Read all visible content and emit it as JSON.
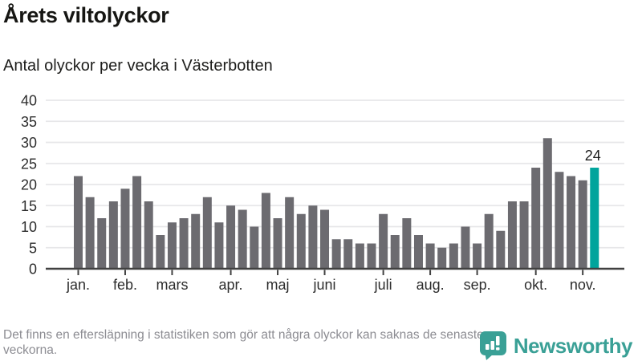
{
  "chart_data": {
    "type": "bar",
    "title": "Årets viltolyckor",
    "subtitle": "Antal olyckor per vecka i Västerbotten",
    "values": [
      22,
      17,
      12,
      16,
      19,
      22,
      16,
      8,
      11,
      12,
      13,
      17,
      11,
      15,
      14,
      10,
      18,
      12,
      17,
      13,
      15,
      14,
      7,
      7,
      6,
      6,
      13,
      8,
      12,
      8,
      6,
      5,
      6,
      10,
      6,
      13,
      9,
      16,
      16,
      24,
      31,
      23,
      22,
      21,
      24
    ],
    "highlight": {
      "index": 44,
      "label": "24",
      "color": "#00a49c"
    },
    "bar_color": "#6c6b70",
    "ylim": [
      0,
      40
    ],
    "y_ticks": [
      0,
      5,
      10,
      15,
      20,
      25,
      30,
      35,
      40
    ],
    "x_ticks": [
      {
        "label": "jan.",
        "week": 1
      },
      {
        "label": "feb.",
        "week": 5
      },
      {
        "label": "mars",
        "week": 9
      },
      {
        "label": "apr.",
        "week": 14
      },
      {
        "label": "maj",
        "week": 18
      },
      {
        "label": "juni",
        "week": 22
      },
      {
        "label": "juli",
        "week": 27
      },
      {
        "label": "aug.",
        "week": 31
      },
      {
        "label": "sep.",
        "week": 35
      },
      {
        "label": "okt.",
        "week": 40
      },
      {
        "label": "nov.",
        "week": 44
      }
    ],
    "grid": true,
    "legend_position": "none",
    "axis_color": "#414141",
    "gridline_color": "#e7e7e9",
    "tick_label_color": "#2d2d2d"
  },
  "footer": {
    "note": "Det finns en eftersläpning i statistiken som gör att några olyckor kan saknas de senaste veckorna.",
    "brand": "Newsworthy",
    "brand_color": "#3aa096"
  }
}
